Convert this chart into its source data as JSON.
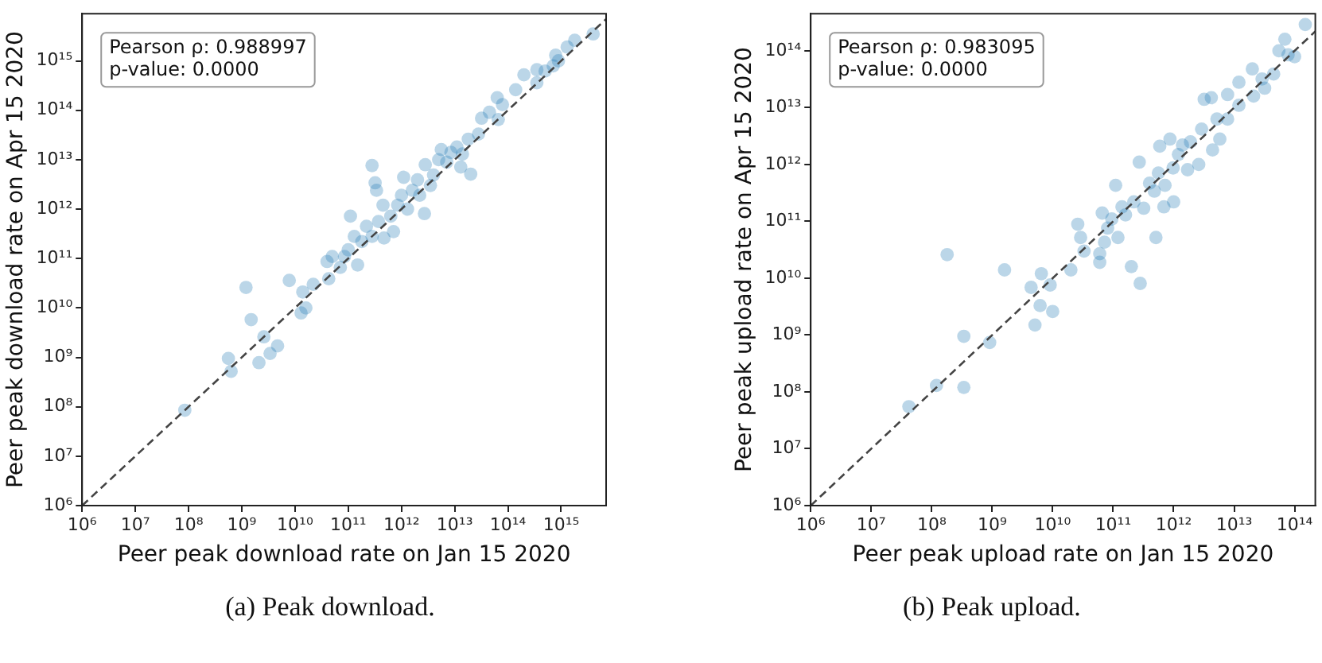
{
  "chart_data": [
    {
      "type": "scatter",
      "xlabel": "Peer peak download rate on Jan 15 2020",
      "ylabel": "Peer peak download rate on Apr 15 2020",
      "annotations": [
        "Pearson ρ: 0.988997\np-value: 0.0000",
        "(a) Peak download."
      ],
      "log": "xy",
      "grid": false,
      "legend": false,
      "xlim": [
        1000000.0,
        7000000000000000.0
      ],
      "ylim": [
        1000000.0,
        9000000000000000.0
      ],
      "xticks": [
        {
          "value": 1000000.0,
          "label": "10⁶"
        },
        {
          "value": 10000000.0,
          "label": "10⁷"
        },
        {
          "value": 100000000.0,
          "label": "10⁸"
        },
        {
          "value": 1000000000.0,
          "label": "10⁹"
        },
        {
          "value": 10000000000.0,
          "label": "10¹⁰"
        },
        {
          "value": 100000000000.0,
          "label": "10¹¹"
        },
        {
          "value": 1000000000000.0,
          "label": "10¹²"
        },
        {
          "value": 10000000000000.0,
          "label": "10¹³"
        },
        {
          "value": 100000000000000.0,
          "label": "10¹⁴"
        },
        {
          "value": 1000000000000000.0,
          "label": "10¹⁵"
        }
      ],
      "yticks": [
        {
          "value": 1000000.0,
          "label": "10⁶"
        },
        {
          "value": 10000000.0,
          "label": "10⁷"
        },
        {
          "value": 100000000.0,
          "label": "10⁸"
        },
        {
          "value": 1000000000.0,
          "label": "10⁹"
        },
        {
          "value": 10000000000.0,
          "label": "10¹⁰"
        },
        {
          "value": 100000000000.0,
          "label": "10¹¹"
        },
        {
          "value": 1000000000000.0,
          "label": "10¹²"
        },
        {
          "value": 10000000000000.0,
          "label": "10¹³"
        },
        {
          "value": 100000000000000.0,
          "label": "10¹⁴"
        },
        {
          "value": 1000000000000000.0,
          "label": "10¹⁵"
        }
      ],
      "series": [
        {
          "color": "#1f77b4",
          "marker": "circle",
          "x": [
            85000000.0,
            630000000.0,
            560000000.0,
            1200000000.0,
            1500000000.0,
            2100000000.0,
            2600000000.0,
            3400000000.0,
            4700000000.0,
            7800000000.0,
            13000000000.0,
            14000000000.0,
            16000000000.0,
            22000000000.0,
            43000000000.0,
            40000000000.0,
            50000000000.0,
            71000000000.0,
            85000000000.0,
            100000000000.0,
            110000000000.0,
            150000000000.0,
            130000000000.0,
            180000000000.0,
            220000000000.0,
            280000000000.0,
            320000000000.0,
            340000000000.0,
            280000000000.0,
            370000000000.0,
            450000000000.0,
            470000000000.0,
            630000000000.0,
            710000000000.0,
            850000000000.0,
            1000000000000.0,
            1100000000000.0,
            1300000000000.0,
            1600000000000.0,
            2000000000000.0,
            2200000000000.0,
            2700000000000.0,
            2800000000000.0,
            3500000000000.0,
            4000000000000.0,
            5000000000000.0,
            5600000000000.0,
            7100000000000.0,
            8500000000000.0,
            11000000000000.0,
            13000000000000.0,
            14000000000000.0,
            20000000000000.0,
            18000000000000.0,
            28000000000000.0,
            32000000000000.0,
            45000000000000.0,
            63000000000000.0,
            66000000000000.0,
            79000000000000.0,
            140000000000000.0,
            200000000000000.0,
            350000000000000.0,
            350000000000000.0,
            500000000000000.0,
            710000000000000.0,
            790000000000000.0,
            890000000000000.0,
            1300000000000000.0,
            1800000000000000.0,
            4000000000000000.0
          ],
          "values": [
            85000000.0,
            520000000.0,
            950000000.0,
            26000000000.0,
            5800000000.0,
            780000000.0,
            2600000000.0,
            1200000000.0,
            1700000000.0,
            36000000000.0,
            7900000000.0,
            21000000000.0,
            10000000000.0,
            30000000000.0,
            39000000000.0,
            87000000000.0,
            110000000000.0,
            66000000000.0,
            110000000000.0,
            150000000000.0,
            720000000000.0,
            74000000000.0,
            280000000000.0,
            220000000000.0,
            450000000000.0,
            7600000000000.0,
            3400000000000.0,
            2400000000000.0,
            280000000000.0,
            560000000000.0,
            1200000000000.0,
            260000000000.0,
            720000000000.0,
            350000000000.0,
            1200000000000.0,
            1900000000000.0,
            4400000000000.0,
            1000000000000.0,
            2400000000000.0,
            3900000000000.0,
            1900000000000.0,
            810000000000.0,
            7900000000000.0,
            3000000000000.0,
            4900000000000.0,
            10000000000000.0,
            16000000000000.0,
            8900000000000.0,
            14000000000000.0,
            18000000000000.0,
            7100000000000.0,
            13000000000000.0,
            5100000000000.0,
            26000000000000.0,
            33000000000000.0,
            69000000000000.0,
            91000000000000.0,
            180000000000000.0,
            65000000000000.0,
            130000000000000.0,
            260000000000000.0,
            520000000000000.0,
            360000000000000.0,
            660000000000000.0,
            620000000000000.0,
            790000000000000.0,
            1300000000000000.0,
            1000000000000000.0,
            1900000000000000.0,
            2600000000000000.0,
            3500000000000000.0
          ]
        },
        {
          "type": "line",
          "color": "#444444",
          "line_style": "dashed",
          "marker": "none",
          "x": [
            1000000.0,
            7000000000000000.0
          ],
          "values": [
            1000000.0,
            7000000000000000.0
          ]
        }
      ]
    },
    {
      "type": "scatter",
      "xlabel": "Peer peak upload rate on Jan 15 2020",
      "ylabel": "Peer peak upload rate on Apr 15 2020",
      "annotations": [
        "Pearson ρ: 0.983095\np-value: 0.0000",
        "(b) Peak upload."
      ],
      "log": "xy",
      "grid": false,
      "legend": false,
      "xlim": [
        1000000.0,
        220000000000000.0
      ],
      "ylim": [
        1000000.0,
        450000000000000.0
      ],
      "xticks": [
        {
          "value": 1000000.0,
          "label": "10⁶"
        },
        {
          "value": 10000000.0,
          "label": "10⁷"
        },
        {
          "value": 100000000.0,
          "label": "10⁸"
        },
        {
          "value": 1000000000.0,
          "label": "10⁹"
        },
        {
          "value": 10000000000.0,
          "label": "10¹⁰"
        },
        {
          "value": 100000000000.0,
          "label": "10¹¹"
        },
        {
          "value": 1000000000000.0,
          "label": "10¹²"
        },
        {
          "value": 10000000000000.0,
          "label": "10¹³"
        },
        {
          "value": 100000000000000.0,
          "label": "10¹⁴"
        }
      ],
      "yticks": [
        {
          "value": 1000000.0,
          "label": "10⁶"
        },
        {
          "value": 10000000.0,
          "label": "10⁷"
        },
        {
          "value": 100000000.0,
          "label": "10⁸"
        },
        {
          "value": 1000000000.0,
          "label": "10⁹"
        },
        {
          "value": 10000000000.0,
          "label": "10¹⁰"
        },
        {
          "value": 100000000000.0,
          "label": "10¹¹"
        },
        {
          "value": 1000000000000.0,
          "label": "10¹²"
        },
        {
          "value": 10000000000000.0,
          "label": "10¹³"
        },
        {
          "value": 100000000000000.0,
          "label": "10¹⁴"
        }
      ],
      "series": [
        {
          "color": "#1f77b4",
          "marker": "circle",
          "x": [
            42000000.0,
            120000000.0,
            340000000.0,
            340000000.0,
            180000000.0,
            910000000.0,
            1600000000.0,
            4400000000.0,
            5100000000.0,
            6200000000.0,
            6500000000.0,
            9100000000.0,
            10000000000.0,
            20000000000.0,
            26000000000.0,
            29000000000.0,
            33000000000.0,
            60000000000.0,
            60000000000.0,
            66000000000.0,
            72000000000.0,
            81000000000.0,
            95000000000.0,
            110000000000.0,
            120000000000.0,
            140000000000.0,
            160000000000.0,
            200000000000.0,
            220000000000.0,
            270000000000.0,
            280000000000.0,
            320000000000.0,
            400000000000.0,
            480000000000.0,
            510000000000.0,
            560000000000.0,
            590000000000.0,
            690000000000.0,
            720000000000.0,
            870000000000.0,
            980000000000.0,
            1000000000000.0,
            1200000000000.0,
            1400000000000.0,
            1700000000000.0,
            1900000000000.0,
            2600000000000.0,
            2900000000000.0,
            3200000000000.0,
            4200000000000.0,
            4400000000000.0,
            5200000000000.0,
            5800000000000.0,
            7800000000000.0,
            7800000000000.0,
            12000000000000.0,
            12000000000000.0,
            20000000000000.0,
            21000000000000.0,
            29000000000000.0,
            32000000000000.0,
            45000000000000.0,
            55000000000000.0,
            69000000000000.0,
            78000000000000.0,
            100000000000000.0,
            150000000000000.0
          ],
          "values": [
            55000000.0,
            130000000.0,
            120000000.0,
            950000000.0,
            26000000000.0,
            740000000.0,
            14000000000.0,
            6900000000.0,
            1500000000.0,
            3300000000.0,
            12000000000.0,
            7600000000.0,
            2600000000.0,
            14000000000.0,
            89000000000.0,
            52000000000.0,
            30000000000.0,
            19000000000.0,
            27000000000.0,
            140000000000.0,
            43000000000.0,
            76000000000.0,
            110000000000.0,
            430000000000.0,
            52000000000.0,
            180000000000.0,
            130000000000.0,
            16000000000.0,
            220000000000.0,
            1100000000000.0,
            8100000000.0,
            170000000000.0,
            470000000000.0,
            340000000000.0,
            52000000000.0,
            710000000000.0,
            2100000000000.0,
            180000000000.0,
            430000000000.0,
            2800000000000.0,
            870000000000.0,
            220000000000.0,
            1500000000000.0,
            2200000000000.0,
            810000000000.0,
            2500000000000.0,
            1000000000000.0,
            4200000000000.0,
            14000000000000.0,
            15000000000000.0,
            1800000000000.0,
            6300000000000.0,
            2800000000000.0,
            6300000000000.0,
            17000000000000.0,
            11000000000000.0,
            28000000000000.0,
            48000000000000.0,
            16000000000000.0,
            32000000000000.0,
            22000000000000.0,
            39000000000000.0,
            100000000000000.0,
            160000000000000.0,
            85000000000000.0,
            79000000000000.0,
            290000000000000.0
          ]
        },
        {
          "type": "line",
          "color": "#444444",
          "line_style": "dashed",
          "marker": "none",
          "x": [
            1000000.0,
            220000000000000.0
          ],
          "values": [
            1000000.0,
            220000000000000.0
          ]
        }
      ]
    }
  ]
}
